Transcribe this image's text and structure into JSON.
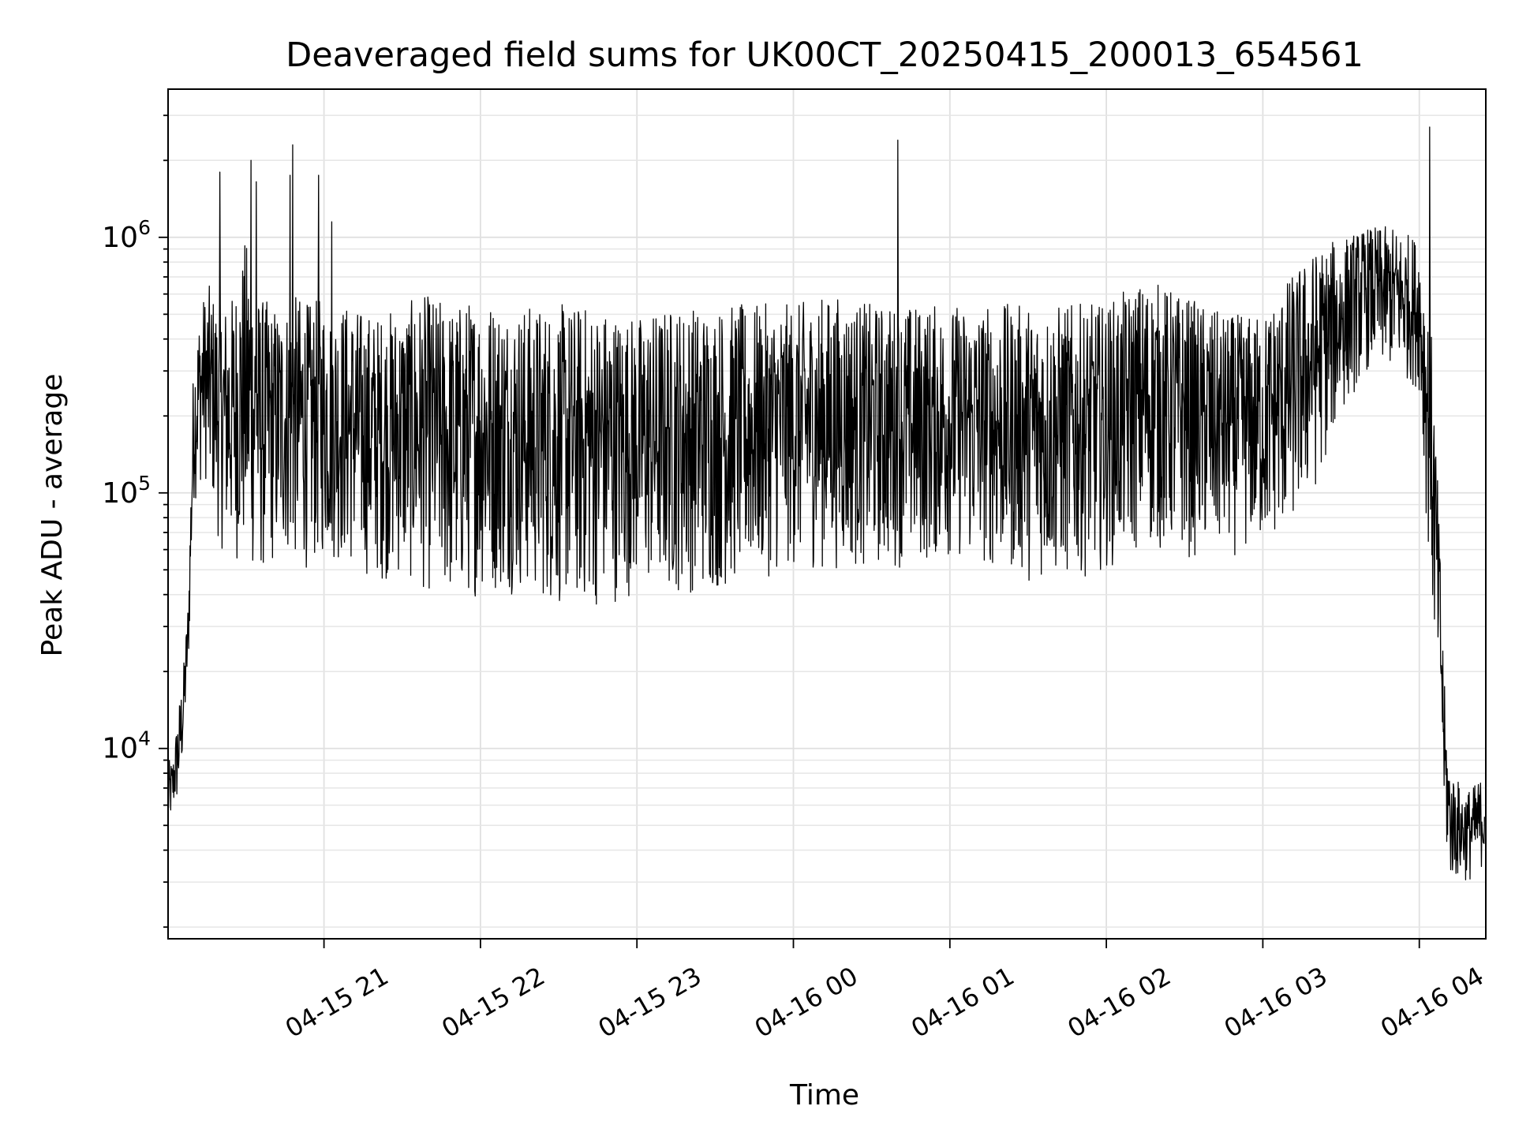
{
  "chart_data": {
    "type": "line",
    "title": "Deaveraged field sums for UK00CT_20250415_200013_654561",
    "xlabel": "Time",
    "ylabel": "Peak ADU - average",
    "x_tick_labels": [
      "04-15 21",
      "04-15 22",
      "04-15 23",
      "04-16 00",
      "04-16 01",
      "04-16 02",
      "04-16 03",
      "04-16 04"
    ],
    "x_ticks": [
      "2025-04-15 21:00",
      "2025-04-15 22:00",
      "2025-04-15 23:00",
      "2025-04-16 00:00",
      "2025-04-16 01:00",
      "2025-04-16 02:00",
      "2025-04-16 03:00",
      "2025-04-16 04:00"
    ],
    "xlim": [
      "2025-04-15 20:00:13",
      "2025-04-16 04:25:30"
    ],
    "y_scale": "log",
    "ylim": [
      1800,
      3800000
    ],
    "y_ticks": [
      10000,
      100000,
      1000000
    ],
    "y_tick_labels": [
      {
        "base": "10",
        "exp": "4"
      },
      {
        "base": "10",
        "exp": "5"
      },
      {
        "base": "10",
        "exp": "6"
      }
    ],
    "grid": true,
    "series_color": "#000000",
    "series": [
      {
        "x": [
          "2025-04-15 20:00:13",
          "2025-04-15 20:02",
          "2025-04-15 20:04",
          "2025-04-15 20:06",
          "2025-04-15 20:08",
          "2025-04-15 20:10",
          "2025-04-15 20:12",
          "2025-04-15 20:14",
          "2025-04-15 20:16",
          "2025-04-15 20:18",
          "2025-04-15 20:20",
          "2025-04-15 20:25",
          "2025-04-15 20:30",
          "2025-04-15 20:35",
          "2025-04-15 20:40",
          "2025-04-15 20:45",
          "2025-04-15 20:50",
          "2025-04-15 20:55",
          "2025-04-15 21:00",
          "2025-04-15 21:10",
          "2025-04-15 21:20",
          "2025-04-15 21:30",
          "2025-04-15 21:40",
          "2025-04-15 21:50",
          "2025-04-15 22:00",
          "2025-04-15 22:15",
          "2025-04-15 22:30",
          "2025-04-15 22:45",
          "2025-04-15 23:00",
          "2025-04-15 23:15",
          "2025-04-15 23:30",
          "2025-04-15 23:45",
          "2025-04-16 00:00",
          "2025-04-16 00:15",
          "2025-04-16 00:30",
          "2025-04-16 00:45",
          "2025-04-16 01:00",
          "2025-04-16 01:15",
          "2025-04-16 01:30",
          "2025-04-16 01:45",
          "2025-04-16 02:00",
          "2025-04-16 02:15",
          "2025-04-16 02:30",
          "2025-04-16 02:45",
          "2025-04-16 03:00",
          "2025-04-16 03:10",
          "2025-04-16 03:20",
          "2025-04-16 03:30",
          "2025-04-16 03:40",
          "2025-04-16 03:50",
          "2025-04-16 04:00",
          "2025-04-16 04:05",
          "2025-04-16 04:08",
          "2025-04-16 04:10",
          "2025-04-16 04:12",
          "2025-04-16 04:14",
          "2025-04-16 04:16",
          "2025-04-16 04:20",
          "2025-04-16 04:25"
        ],
        "lower": [
          4500,
          5500,
          6000,
          9000,
          20000,
          90000,
          100000,
          120000,
          90000,
          80000,
          60000,
          55000,
          50000,
          45000,
          50000,
          55000,
          50000,
          50000,
          55000,
          50000,
          45000,
          45000,
          40000,
          35000,
          40000,
          40000,
          35000,
          35000,
          40000,
          40000,
          40000,
          45000,
          50000,
          50000,
          50000,
          50000,
          55000,
          50000,
          45000,
          45000,
          50000,
          60000,
          55000,
          55000,
          60000,
          70000,
          100000,
          200000,
          300000,
          300000,
          250000,
          30000,
          12000,
          4000,
          3000,
          3000,
          3000,
          3000,
          3500
        ],
        "upper": [
          9000,
          9000,
          14000,
          20000,
          40000,
          350000,
          500000,
          600000,
          650000,
          600000,
          550000,
          600000,
          1000000,
          600000,
          550000,
          550000,
          600000,
          550000,
          600000,
          550000,
          500000,
          550000,
          600000,
          550000,
          600000,
          550000,
          550000,
          550000,
          500000,
          550000,
          550000,
          550000,
          550000,
          600000,
          550000,
          550000,
          550000,
          550000,
          550000,
          550000,
          550000,
          700000,
          600000,
          500000,
          500000,
          700000,
          900000,
          1000000,
          1100000,
          1100000,
          1000000,
          400000,
          60000,
          14000,
          8000,
          8000,
          7000,
          7000,
          8000
        ],
        "spikes": [
          {
            "x": "2025-04-15 20:20",
            "y": 1800000
          },
          {
            "x": "2025-04-15 20:32",
            "y": 2000000
          },
          {
            "x": "2025-04-15 20:34",
            "y": 1650000
          },
          {
            "x": "2025-04-15 20:47",
            "y": 1750000
          },
          {
            "x": "2025-04-15 20:48",
            "y": 2300000
          },
          {
            "x": "2025-04-15 20:58",
            "y": 1750000
          },
          {
            "x": "2025-04-15 21:03",
            "y": 1150000
          },
          {
            "x": "2025-04-16 00:40",
            "y": 2400000
          },
          {
            "x": "2025-04-16 04:04",
            "y": 2700000
          }
        ]
      }
    ]
  }
}
